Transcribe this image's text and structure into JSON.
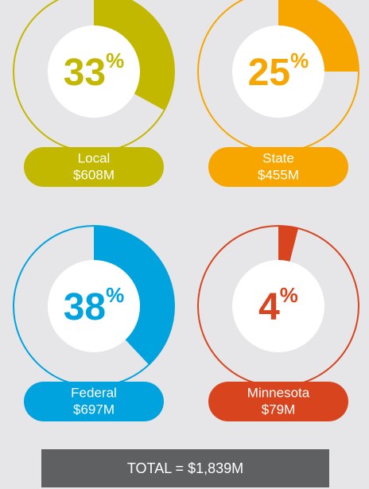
{
  "chart_data": [
    {
      "type": "pie",
      "categories": [
        "Local"
      ],
      "values": [
        33
      ],
      "unit": "%",
      "amount": "$608M",
      "color": "#c3b800"
    },
    {
      "type": "pie",
      "categories": [
        "State"
      ],
      "values": [
        25
      ],
      "unit": "%",
      "amount": "$455M",
      "color": "#f7a600"
    },
    {
      "type": "pie",
      "categories": [
        "Federal"
      ],
      "values": [
        38
      ],
      "unit": "%",
      "amount": "$697M",
      "color": "#00a3de"
    },
    {
      "type": "pie",
      "categories": [
        "Minnesota"
      ],
      "values": [
        4
      ],
      "unit": "%",
      "amount": "$79M",
      "color": "#d8441e"
    }
  ],
  "total": "TOTAL = $1,839M"
}
